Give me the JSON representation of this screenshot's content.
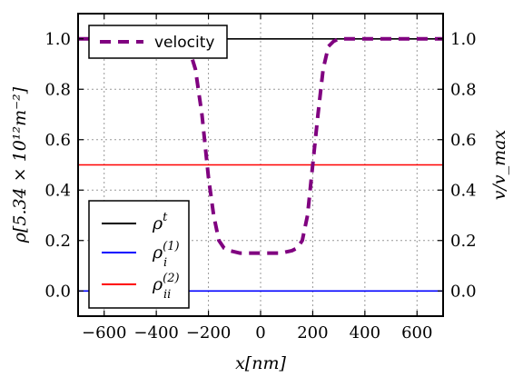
{
  "chart_data": {
    "type": "line",
    "x_label": "x[nm]",
    "y_label_left": "ρ[5.34 × 10¹²m⁻²]",
    "y_label_right": "v/v_max",
    "xlim": [
      -700,
      700
    ],
    "ylim_left": [
      -0.1,
      1.1
    ],
    "ylim_right": [
      -0.1,
      1.1
    ],
    "x_ticks": [
      -600,
      -400,
      -200,
      0,
      200,
      400,
      600
    ],
    "x_tick_labels": [
      "−600",
      "−400",
      "−200",
      "0",
      "200",
      "400",
      "600"
    ],
    "y_ticks_left": [
      0.0,
      0.2,
      0.4,
      0.6,
      0.8,
      1.0
    ],
    "y_tick_labels_left": [
      "0.0",
      "0.2",
      "0.4",
      "0.6",
      "0.8",
      "1.0"
    ],
    "y_ticks_right": [
      0.0,
      0.2,
      0.4,
      0.6,
      0.8,
      1.0
    ],
    "y_tick_labels_right": [
      "0.0",
      "0.2",
      "0.4",
      "0.6",
      "0.8",
      "1.0"
    ],
    "grid": true,
    "series": [
      {
        "name": "ρ^t",
        "axis": "left",
        "color": "#000000",
        "style": "solid",
        "x": [
          -700,
          700
        ],
        "y": [
          1.0,
          1.0
        ]
      },
      {
        "name": "ρ_i^(1)",
        "axis": "left",
        "color": "#0000ff",
        "style": "solid",
        "x": [
          -700,
          700
        ],
        "y": [
          0.0,
          0.0
        ]
      },
      {
        "name": "ρ_ii^(2)",
        "axis": "left",
        "color": "#ff0000",
        "style": "solid",
        "x": [
          -700,
          700
        ],
        "y": [
          0.5,
          0.5
        ]
      },
      {
        "name": "velocity",
        "axis": "right",
        "color": "#800080",
        "style": "dashed",
        "x": [
          -700,
          -320,
          -280,
          -250,
          -225,
          -200,
          -180,
          -160,
          -140,
          -120,
          -100,
          -80,
          -40,
          0,
          40,
          80,
          100,
          120,
          140,
          160,
          180,
          200,
          220,
          240,
          260,
          280,
          300,
          320,
          700
        ],
        "y": [
          1.0,
          1.0,
          0.98,
          0.88,
          0.7,
          0.45,
          0.3,
          0.2,
          0.17,
          0.16,
          0.155,
          0.15,
          0.15,
          0.15,
          0.15,
          0.15,
          0.155,
          0.16,
          0.17,
          0.2,
          0.3,
          0.5,
          0.7,
          0.88,
          0.97,
          0.99,
          1.0,
          1.0,
          1.0
        ]
      }
    ],
    "legends": [
      {
        "placement": "top-left",
        "entries": [
          "velocity"
        ]
      },
      {
        "placement": "lower-left",
        "entries": [
          "ρ^t",
          "ρ_i^(1)",
          "ρ_ii^(2)"
        ]
      }
    ]
  }
}
